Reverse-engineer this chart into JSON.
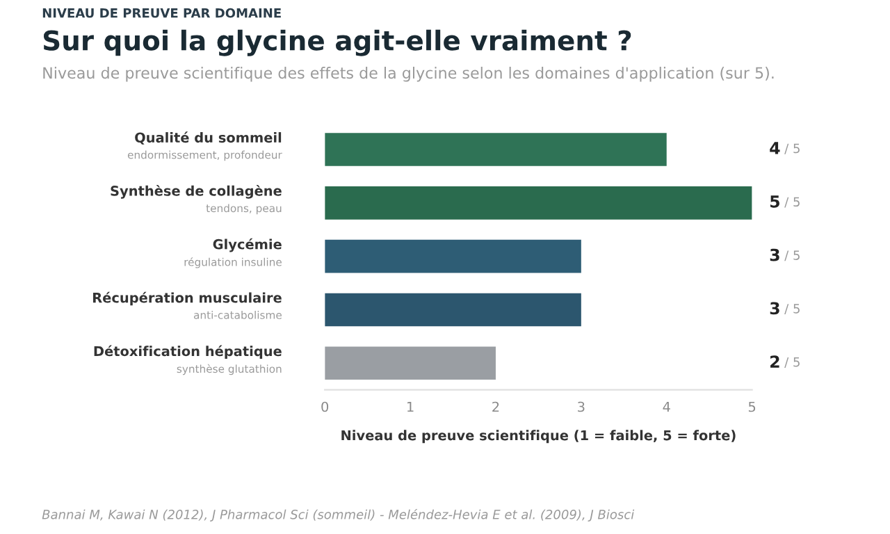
{
  "chart_data": {
    "type": "bar",
    "orientation": "horizontal",
    "title": "Sur quoi la glycine agit-elle vraiment ?",
    "subtitle": "Niveau de preuve scientifique des effets de la glycine selon les domaines d'application (sur 5).",
    "xlabel": "Niveau de preuve scientifique (1 = faible, 5 = forte)",
    "categories": [
      "Qualité du sommeil\nendormissement, profondeur",
      "Synthèse de collagène\ntendons, peau",
      "Glycémie\nrégulation insuline",
      "Récupération musculaire\nanti-catabolisme",
      "Détoxification hépatique\nsynthèse glutathion"
    ],
    "values": [
      4,
      5,
      3,
      3,
      2
    ],
    "colors": [
      "#2f7356",
      "#2a6b4e",
      "#2e5d75",
      "#2c566e",
      "#9a9ea3"
    ],
    "data_labels": true,
    "xlim": [
      0,
      5
    ],
    "xticks": [
      0,
      1,
      2,
      3,
      4,
      5
    ],
    "grid": false,
    "annotations": [
      "NIVEAU DE PREUVE PAR DOMAINE",
      "/ 5",
      "Bannai M, Kawai N (2012), J Pharmacol Sci (sommeil) - Meléndez-Hevia E et al. (2009), J Biosci"
    ]
  }
}
